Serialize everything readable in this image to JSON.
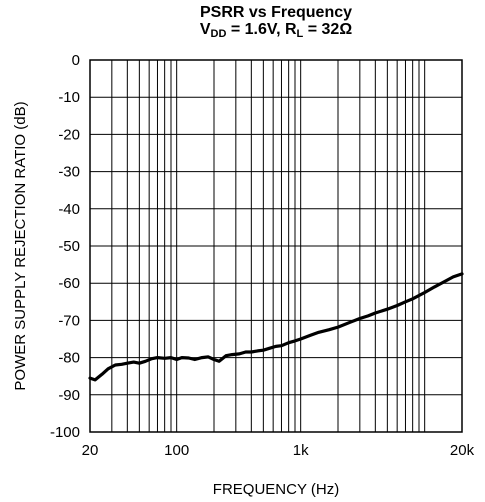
{
  "chart_data": {
    "type": "line",
    "title": "PSRR vs Frequency",
    "subtitle": {
      "vdd_label": "V",
      "vdd_sub": "DD",
      "vdd_value": " = 1.6V, ",
      "rl_label": "R",
      "rl_sub": "L",
      "rl_value": " = 32Ω"
    },
    "xlabel": "FREQUENCY (Hz)",
    "ylabel": "POWER SUPPLY REJECTION RATIO (dB)",
    "x_scale": "log",
    "xlim": [
      20,
      20000
    ],
    "ylim": [
      -100,
      0
    ],
    "grid": true,
    "x_ticks": [
      {
        "value": 20,
        "label": "20"
      },
      {
        "value": 100,
        "label": "100"
      },
      {
        "value": 1000,
        "label": "1k"
      },
      {
        "value": 20000,
        "label": "20k"
      }
    ],
    "y_ticks": [
      {
        "value": 0,
        "label": "0"
      },
      {
        "value": -10,
        "label": "-10"
      },
      {
        "value": -20,
        "label": "-20"
      },
      {
        "value": -30,
        "label": "-30"
      },
      {
        "value": -40,
        "label": "-40"
      },
      {
        "value": -50,
        "label": "-50"
      },
      {
        "value": -60,
        "label": "-60"
      },
      {
        "value": -70,
        "label": "-70"
      },
      {
        "value": -80,
        "label": "-80"
      },
      {
        "value": -90,
        "label": "-90"
      },
      {
        "value": -100,
        "label": "-100"
      }
    ],
    "series": [
      {
        "color": "#000000",
        "x": [
          20,
          22,
          25,
          28,
          32,
          36,
          40,
          45,
          50,
          56,
          63,
          70,
          80,
          90,
          100,
          110,
          125,
          140,
          160,
          180,
          200,
          220,
          250,
          280,
          320,
          360,
          400,
          450,
          500,
          560,
          630,
          700,
          800,
          900,
          1000,
          1200,
          1400,
          1700,
          2000,
          2500,
          3000,
          3500,
          4000,
          5000,
          6000,
          7000,
          8000,
          10000,
          12000,
          14000,
          17000,
          20000
        ],
        "y": [
          -85.5,
          -86,
          -84.5,
          -83,
          -82,
          -81.8,
          -81.5,
          -81.2,
          -81.5,
          -81,
          -80.3,
          -80,
          -80.2,
          -80,
          -80.5,
          -80,
          -80.1,
          -80.5,
          -80,
          -79.8,
          -80.5,
          -81,
          -79.5,
          -79.2,
          -79,
          -78.5,
          -78.5,
          -78.2,
          -78,
          -77.5,
          -77,
          -76.8,
          -76,
          -75.5,
          -75,
          -74,
          -73.2,
          -72.5,
          -71.8,
          -70.5,
          -69.5,
          -68.8,
          -68,
          -67,
          -66,
          -65,
          -64.2,
          -62.5,
          -61,
          -59.8,
          -58.3,
          -57.5
        ]
      }
    ]
  }
}
